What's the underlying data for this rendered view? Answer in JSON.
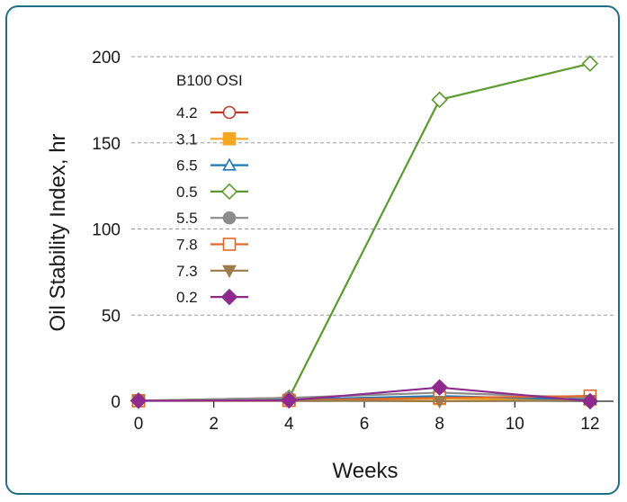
{
  "chart_data": {
    "type": "line",
    "title": "",
    "xlabel": "Weeks",
    "ylabel": "Oil Stability Index, hr",
    "x": [
      0,
      4,
      8,
      12
    ],
    "xlim": [
      0,
      12.5
    ],
    "ylim": [
      0,
      200
    ],
    "x_ticks": [
      "0",
      "2",
      "4",
      "6",
      "8",
      "10",
      "12"
    ],
    "y_ticks": [
      "0",
      "50",
      "100",
      "150",
      "200"
    ],
    "grid": "horizontal dashed",
    "legend_title": "B100 OSI",
    "legend_position": "top-left",
    "series": [
      {
        "name": "4.2",
        "values": [
          0.3,
          0.3,
          1.5,
          3
        ],
        "color": "#c0392b",
        "marker": "circle-open"
      },
      {
        "name": "3.1",
        "values": [
          0.3,
          0.5,
          1.5,
          1
        ],
        "color": "#f5a623",
        "marker": "square-filled"
      },
      {
        "name": "6.5",
        "values": [
          0.3,
          1,
          3,
          1
        ],
        "color": "#1f77b4",
        "marker": "triangle-open"
      },
      {
        "name": "0.5",
        "values": [
          0.3,
          2,
          175,
          196
        ],
        "color": "#5a9a2e",
        "marker": "diamond-open"
      },
      {
        "name": "5.5",
        "values": [
          0.3,
          2,
          5,
          2
        ],
        "color": "#8c8c8c",
        "marker": "circle-filled"
      },
      {
        "name": "7.8",
        "values": [
          0.3,
          0.5,
          2,
          3
        ],
        "color": "#e06a2c",
        "marker": "square-open"
      },
      {
        "name": "7.3",
        "values": [
          0.3,
          0.5,
          0,
          0.5
        ],
        "color": "#9c7a4a",
        "marker": "triangle-down-filled"
      },
      {
        "name": "0.2",
        "values": [
          0.3,
          0.5,
          8,
          0
        ],
        "color": "#8e2a8e",
        "marker": "diamond-filled"
      }
    ]
  }
}
